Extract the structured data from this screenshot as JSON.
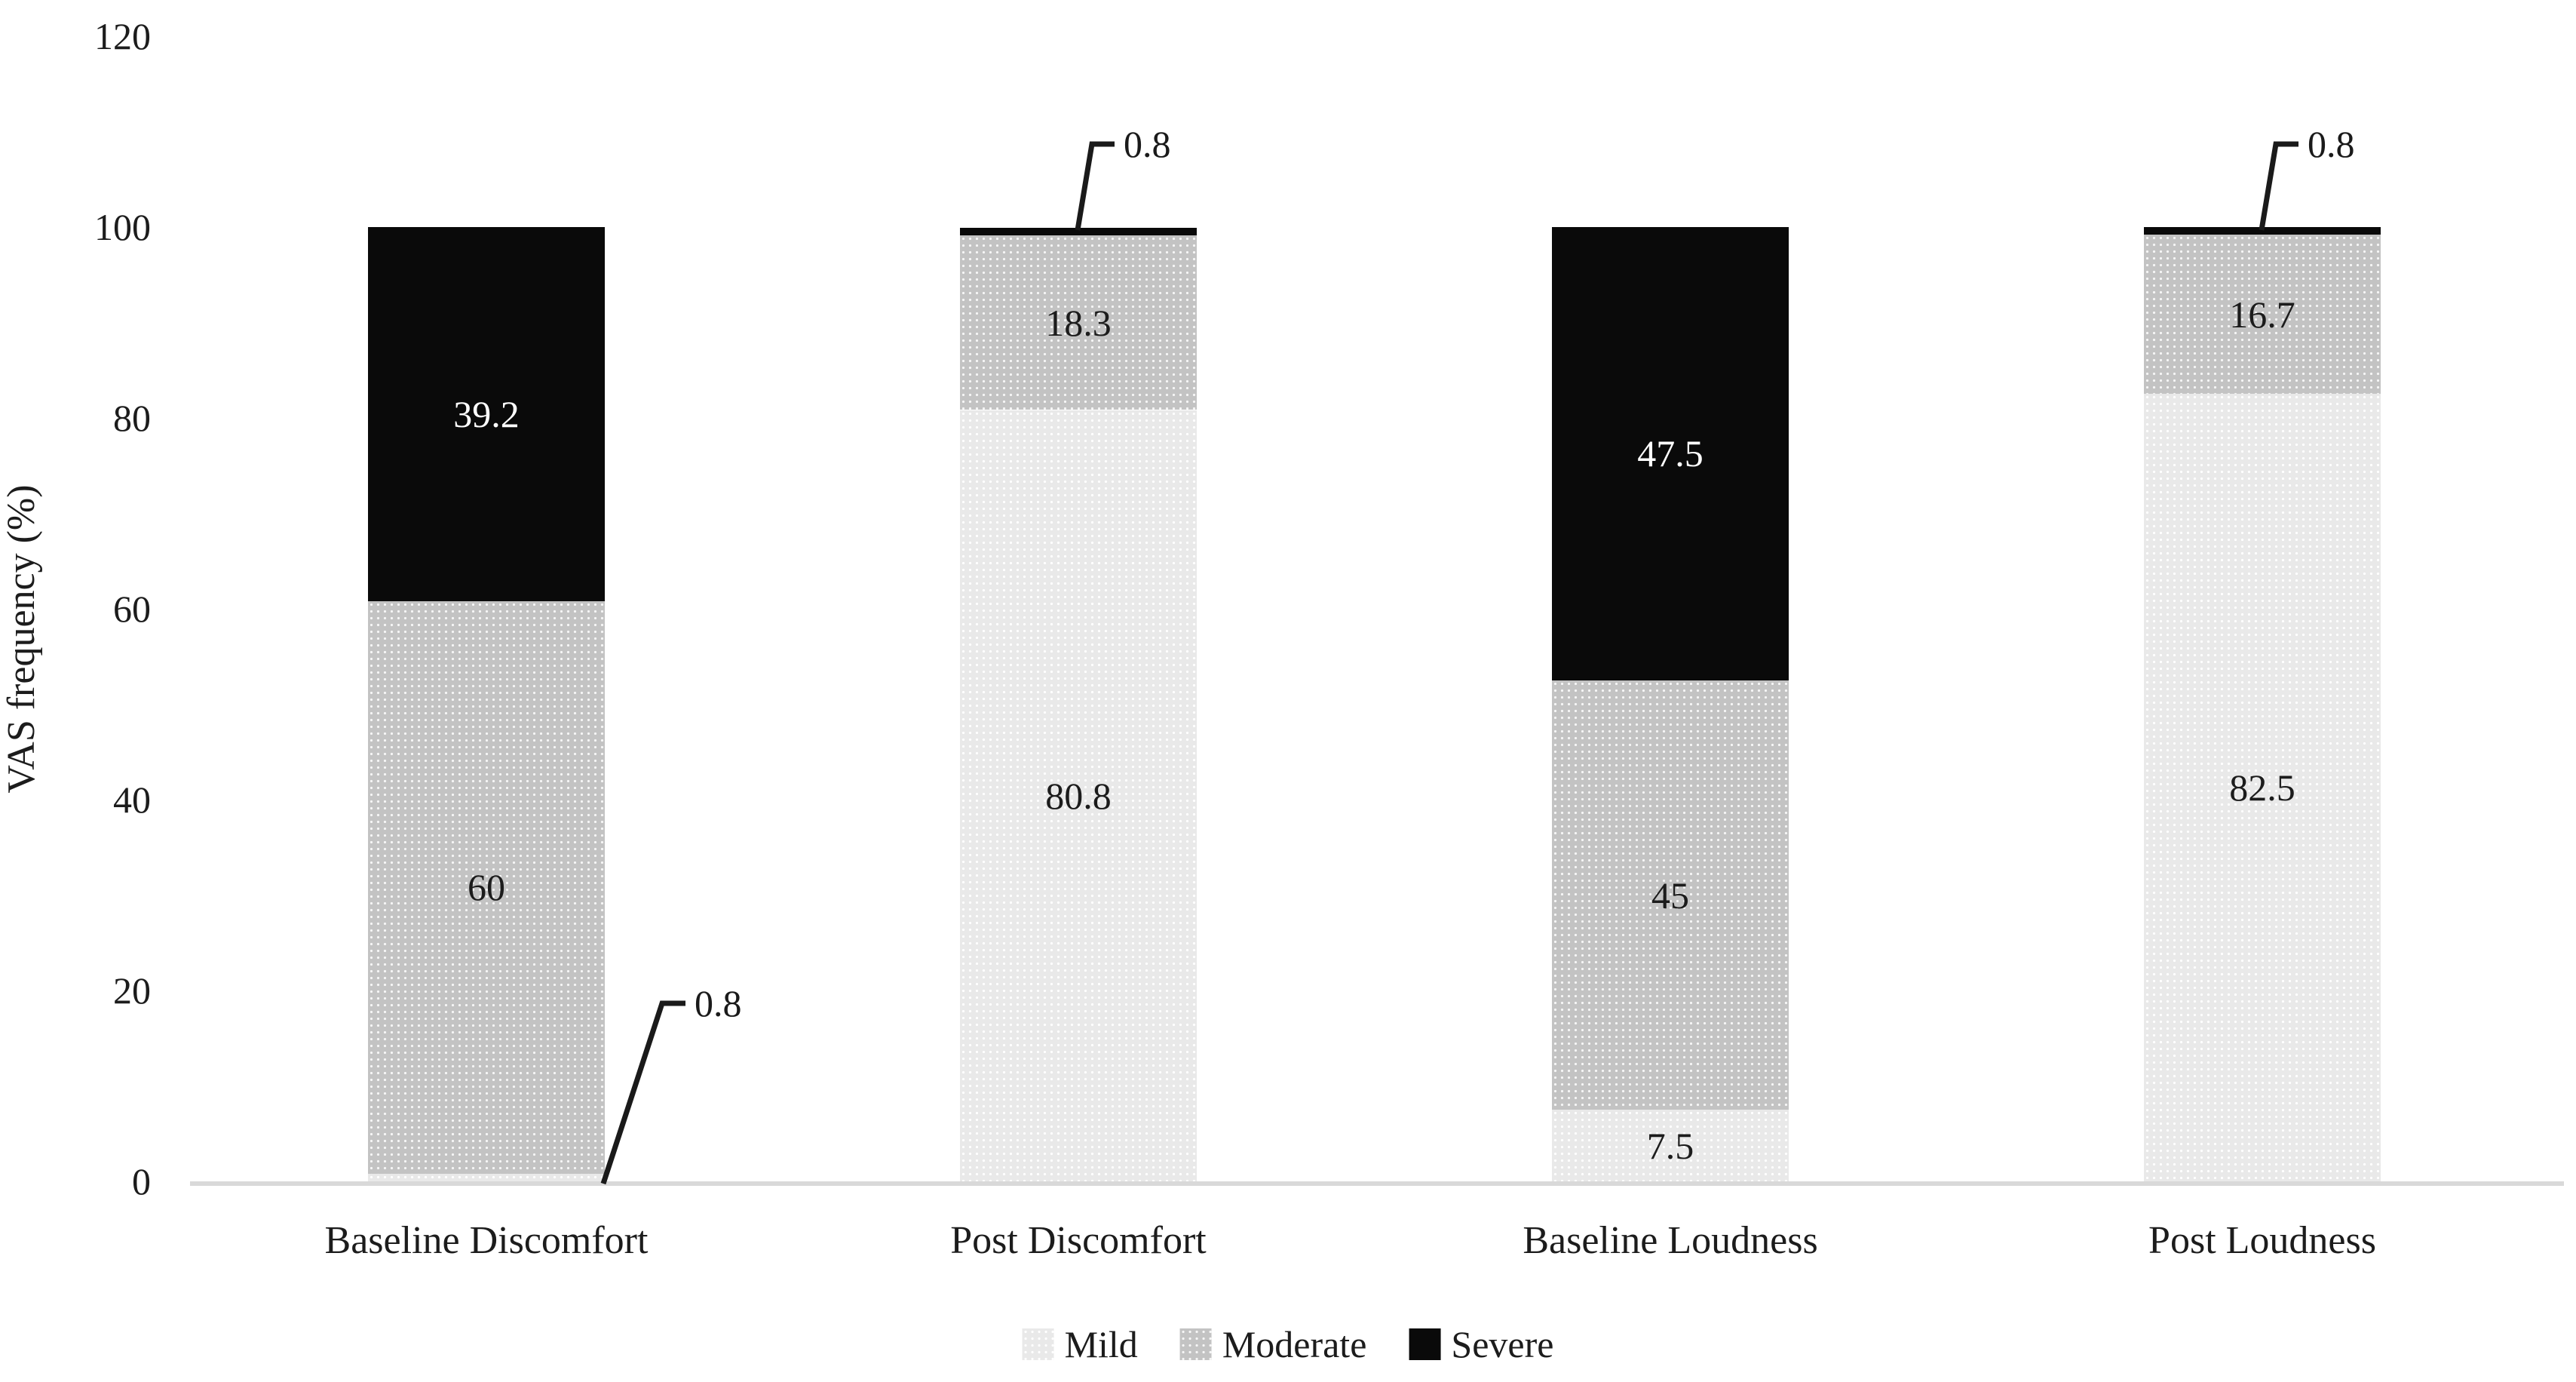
{
  "chart_data": {
    "type": "bar",
    "stacked": true,
    "orientation": "vertical",
    "categories": [
      "Baseline Discomfort",
      "Post Discomfort",
      "Baseline Loudness",
      "Post Loudness"
    ],
    "series": [
      {
        "name": "Mild",
        "color": "#e9e9e9",
        "label_color": "#1c1c1c",
        "values": [
          0.8,
          80.8,
          7.5,
          82.5
        ]
      },
      {
        "name": "Moderate",
        "color": "#c3c3c3",
        "label_color": "#1c1c1c",
        "values": [
          60,
          18.3,
          45,
          16.7
        ]
      },
      {
        "name": "Severe",
        "color": "#0a0a0a",
        "label_color": "#ffffff",
        "values": [
          39.2,
          0.8,
          47.5,
          0.8
        ]
      }
    ],
    "value_labels": {
      "Mild": [
        "0.8",
        "80.8",
        "7.5",
        "82.5"
      ],
      "Moderate": [
        "60",
        "18.3",
        "45",
        "16.7"
      ],
      "Severe": [
        "39.2",
        "0.8",
        "47.5",
        "0.8"
      ]
    },
    "callouts": [
      {
        "category": "Baseline Discomfort",
        "series": "Mild",
        "label": "0.8",
        "placement": "bottom-right"
      },
      {
        "category": "Post Discomfort",
        "series": "Severe",
        "label": "0.8",
        "placement": "top"
      },
      {
        "category": "Post Loudness",
        "series": "Severe",
        "label": "0.8",
        "placement": "top"
      }
    ],
    "title": "",
    "xlabel": "",
    "ylabel": "VAS frequency (%)",
    "yticks": [
      0,
      20,
      40,
      60,
      80,
      100,
      120
    ],
    "ylim": [
      0,
      120
    ],
    "grid": false,
    "legend_position": "bottom",
    "legend_entries": [
      "Mild",
      "Moderate",
      "Severe"
    ],
    "colors": {
      "background": "#ffffff",
      "axis_line": "#d9d9d9",
      "leader_line": "#1a1a1a",
      "text": "#1c1c1c"
    }
  }
}
